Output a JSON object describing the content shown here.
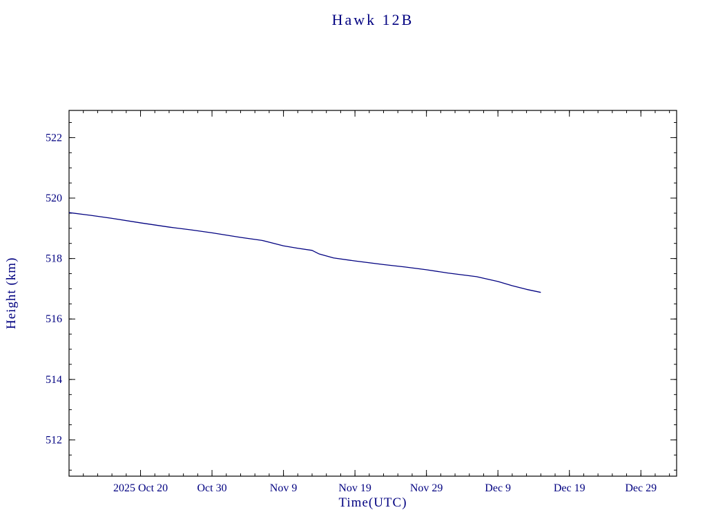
{
  "chart_data": {
    "type": "line",
    "title": "Hawk 12B",
    "xlabel": "Time(UTC)",
    "ylabel": "Height (km)",
    "x_unit": "date",
    "xlim": [
      "2025-10-10",
      "2026-01-03"
    ],
    "ylim": [
      510.8,
      522.9
    ],
    "grid": false,
    "legend": "none",
    "x_ticks": [
      {
        "date": "2025-10-20",
        "label": "2025 Oct 20"
      },
      {
        "date": "2025-10-30",
        "label": "Oct 30"
      },
      {
        "date": "2025-11-09",
        "label": "Nov 9"
      },
      {
        "date": "2025-11-19",
        "label": "Nov 19"
      },
      {
        "date": "2025-11-29",
        "label": "Nov 29"
      },
      {
        "date": "2025-12-09",
        "label": "Dec 9"
      },
      {
        "date": "2025-12-19",
        "label": "Dec 19"
      },
      {
        "date": "2025-12-29",
        "label": "Dec 29"
      }
    ],
    "x_minor_tick_days": 2,
    "y_ticks": [
      512,
      514,
      516,
      518,
      520,
      522
    ],
    "y_minor_tick_step": 0.5,
    "series": [
      {
        "name": "Height (km)",
        "color": "#000080",
        "points": [
          {
            "date": "2025-10-10",
            "height": 519.52
          },
          {
            "date": "2025-10-13",
            "height": 519.43
          },
          {
            "date": "2025-10-16",
            "height": 519.33
          },
          {
            "date": "2025-10-20",
            "height": 519.18
          },
          {
            "date": "2025-10-24",
            "height": 519.04
          },
          {
            "date": "2025-10-27",
            "height": 518.95
          },
          {
            "date": "2025-10-30",
            "height": 518.85
          },
          {
            "date": "2025-11-03",
            "height": 518.7
          },
          {
            "date": "2025-11-06",
            "height": 518.6
          },
          {
            "date": "2025-11-09",
            "height": 518.42
          },
          {
            "date": "2025-11-11",
            "height": 518.34
          },
          {
            "date": "2025-11-13",
            "height": 518.27
          },
          {
            "date": "2025-11-14",
            "height": 518.15
          },
          {
            "date": "2025-11-16",
            "height": 518.02
          },
          {
            "date": "2025-11-19",
            "height": 517.92
          },
          {
            "date": "2025-11-23",
            "height": 517.8
          },
          {
            "date": "2025-11-26",
            "height": 517.72
          },
          {
            "date": "2025-11-29",
            "height": 517.63
          },
          {
            "date": "2025-12-02",
            "height": 517.52
          },
          {
            "date": "2025-12-06",
            "height": 517.4
          },
          {
            "date": "2025-12-09",
            "height": 517.24
          },
          {
            "date": "2025-12-11",
            "height": 517.1
          },
          {
            "date": "2025-12-13",
            "height": 516.98
          },
          {
            "date": "2025-12-15",
            "height": 516.88
          }
        ]
      }
    ],
    "colors": {
      "frame": "#000000",
      "text": "#000080",
      "line": "#000080",
      "background": "#ffffff"
    }
  }
}
